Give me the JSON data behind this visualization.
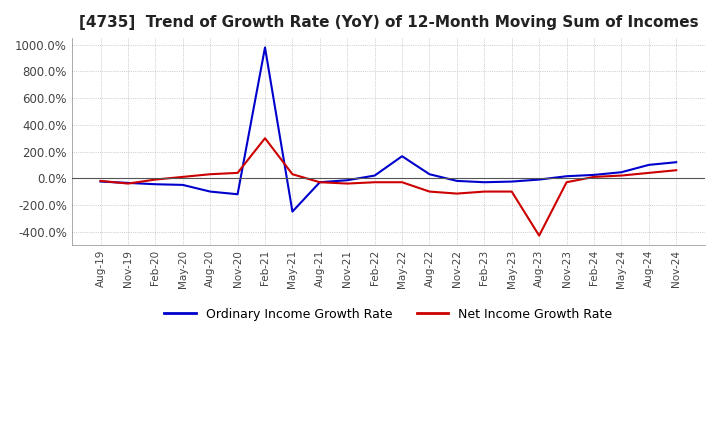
{
  "title": "[4735]  Trend of Growth Rate (YoY) of 12-Month Moving Sum of Incomes",
  "title_fontsize": 11,
  "ylim": [
    -500,
    1050
  ],
  "yticks": [
    -400,
    -200,
    0,
    200,
    400,
    600,
    800,
    1000
  ],
  "ytick_labels": [
    "-400.0%",
    "-200.0%",
    "0.0%",
    "200.0%",
    "400.0%",
    "600.0%",
    "800.0%",
    "1000.0%"
  ],
  "background_color": "#ffffff",
  "plot_bg_color": "#ffffff",
  "grid_color": "#aaaaaa",
  "ordinary_color": "#0000cc",
  "net_color": "#cc0000",
  "legend_ordinary": "Ordinary Income Growth Rate",
  "legend_net": "Net Income Growth Rate",
  "dates": [
    "Aug-19",
    "Nov-19",
    "Feb-20",
    "May-20",
    "Aug-20",
    "Nov-20",
    "Feb-21",
    "May-21",
    "Aug-21",
    "Nov-21",
    "Feb-22",
    "May-22",
    "Aug-22",
    "Nov-22",
    "Feb-23",
    "May-23",
    "Aug-23",
    "Nov-23",
    "Feb-24",
    "May-24",
    "Aug-24",
    "Nov-24"
  ],
  "ordinary_data": [
    -25,
    -35,
    -45,
    -50,
    -100,
    -120,
    980,
    -250,
    -30,
    -15,
    20,
    165,
    30,
    -20,
    -30,
    -25,
    -10,
    15,
    25,
    45,
    100,
    120
  ],
  "net_data": [
    -20,
    -40,
    -10,
    10,
    30,
    40,
    300,
    30,
    -30,
    -40,
    -30,
    -30,
    -100,
    -115,
    -100,
    -100,
    -430,
    -30,
    10,
    20,
    40,
    60
  ]
}
